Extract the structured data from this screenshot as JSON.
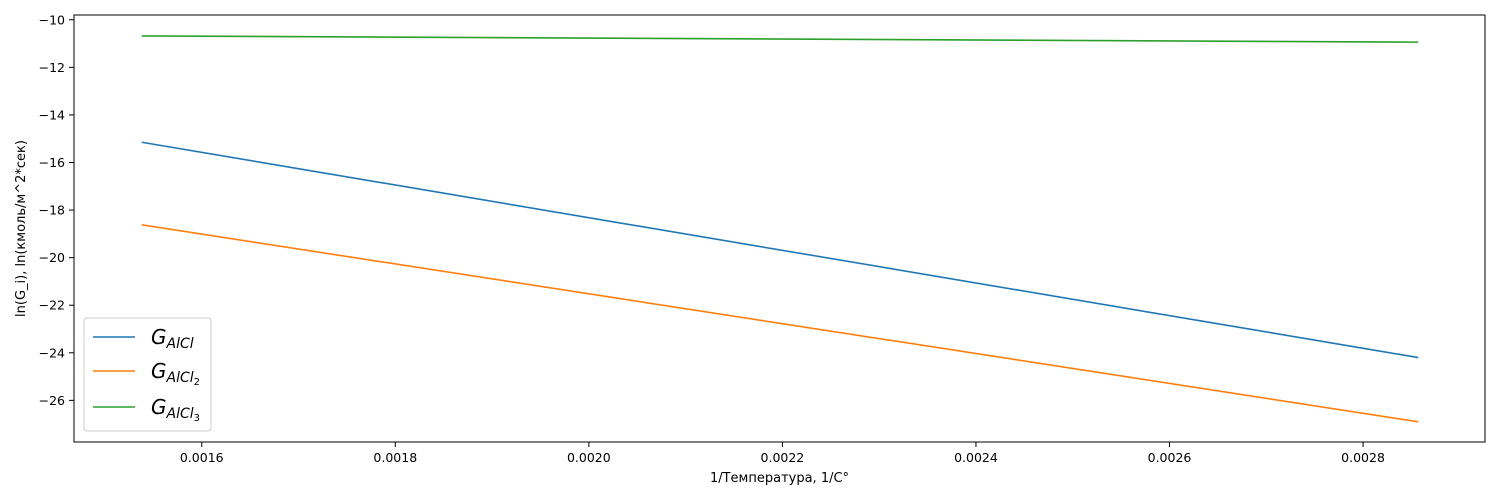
{
  "chart_data": {
    "type": "line",
    "xlabel": "1/Температура, 1/C°",
    "ylabel": "ln(G_i), ln(кмоль/м^2*сек)",
    "xlim": [
      0.001468,
      0.002926
    ],
    "ylim": [
      -27.75,
      -9.8
    ],
    "xticks": [
      0.0016,
      0.0018,
      0.002,
      0.0022,
      0.0024,
      0.0026,
      0.0028
    ],
    "xtick_labels": [
      "0.0016",
      "0.0018",
      "0.0020",
      "0.0022",
      "0.0024",
      "0.0026",
      "0.0028"
    ],
    "yticks": [
      -10,
      -12,
      -14,
      -16,
      -18,
      -20,
      -22,
      -24,
      -26
    ],
    "ytick_labels": [
      "−10",
      "−12",
      "−14",
      "−16",
      "−18",
      "−20",
      "−22",
      "−24",
      "−26"
    ],
    "legend_position": "lower-left",
    "grid": false,
    "series": [
      {
        "name_main": "G",
        "name_sub": "AlCl",
        "name_subsub": "",
        "color": "#1f77b4",
        "x": [
          0.001538,
          0.002857
        ],
        "y": [
          -15.15,
          -24.2
        ]
      },
      {
        "name_main": "G",
        "name_sub": "AlCl",
        "name_subsub": "2",
        "color": "#ff7f0e",
        "x": [
          0.001538,
          0.002857
        ],
        "y": [
          -18.62,
          -26.9
        ]
      },
      {
        "name_main": "G",
        "name_sub": "AlCl",
        "name_subsub": "3",
        "color": "#2ca02c",
        "x": [
          0.001538,
          0.002857
        ],
        "y": [
          -10.68,
          -10.94
        ]
      }
    ]
  }
}
